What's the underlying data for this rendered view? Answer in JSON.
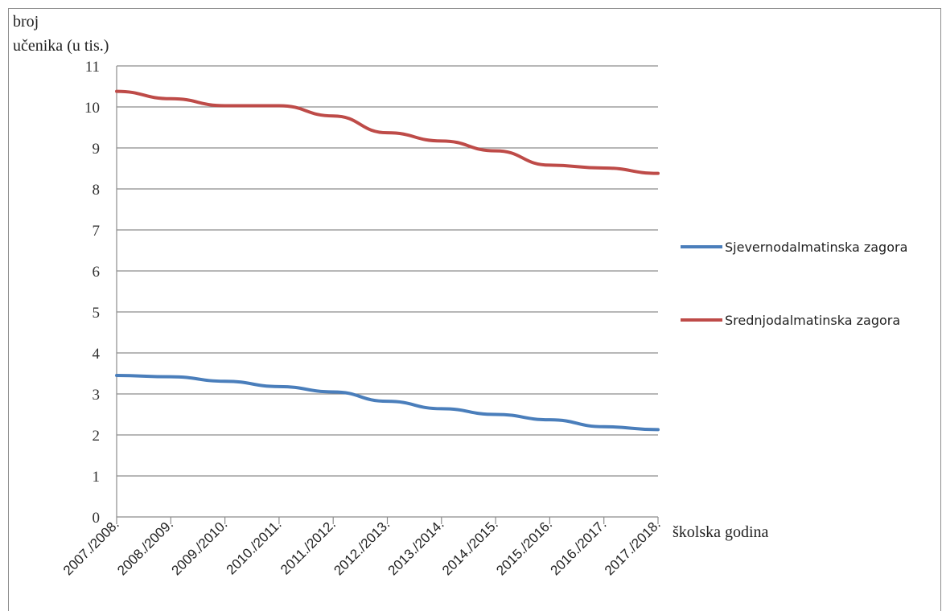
{
  "chart_data": {
    "type": "line",
    "ylabel_lines": [
      "broj",
      "učenika (u tis.)"
    ],
    "xlabel": "školska godina",
    "categories": [
      "2007./2008.",
      "2008./2009.",
      "2009./2010.",
      "2010./2011.",
      "2011./2012.",
      "2012./2013.",
      "2013./2014.",
      "2014./2015.",
      "2015./2016.",
      "2016./2017.",
      "2017./2018."
    ],
    "ylim": [
      0,
      11
    ],
    "yticks": [
      "0",
      "1",
      "2",
      "3",
      "4",
      "5",
      "6",
      "7",
      "8",
      "9",
      "10",
      "11"
    ],
    "grid": true,
    "legend_position": "right",
    "series": [
      {
        "name": "Sjevernodalmatinska zagora",
        "color": "#4a7ebb",
        "values": [
          3.45,
          3.42,
          3.31,
          3.18,
          3.05,
          2.82,
          2.64,
          2.5,
          2.37,
          2.2,
          2.13
        ]
      },
      {
        "name": "Srednjodalmatinska zagora",
        "color": "#be4b48",
        "values": [
          10.38,
          10.2,
          10.03,
          10.03,
          9.78,
          9.37,
          9.17,
          8.93,
          8.58,
          8.51,
          8.38
        ]
      }
    ]
  }
}
